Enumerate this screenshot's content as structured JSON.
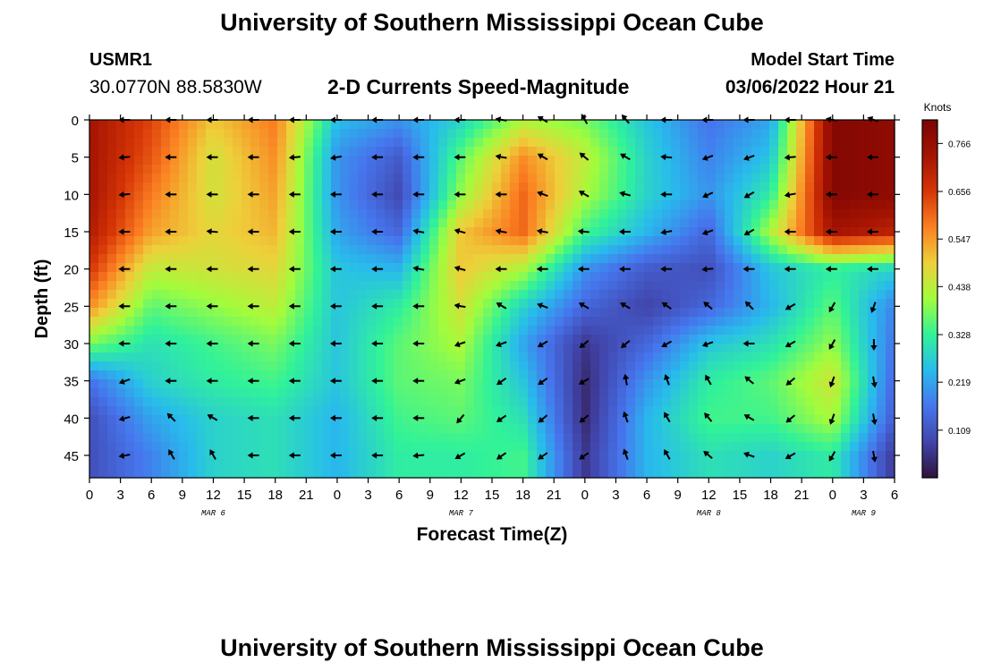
{
  "header": {
    "title": "University of Southern Mississippi Ocean Cube",
    "station": "USMR1",
    "coordinates": "30.0770N  88.5830W",
    "subtitle": "2-D Currents Speed-Magnitude",
    "model_start_label": "Model Start Time",
    "model_start_value": "03/06/2022 Hour 21"
  },
  "footer": {
    "title": "University of Southern Mississippi Ocean Cube"
  },
  "chart_data": {
    "type": "heatmap",
    "title": "2-D Currents Speed-Magnitude",
    "xlabel": "Forecast Time(Z)",
    "ylabel": "Depth (ft)",
    "x_tick_labels": [
      "0",
      "3",
      "6",
      "9",
      "12",
      "15",
      "18",
      "21",
      "0",
      "3",
      "6",
      "9",
      "12",
      "15",
      "18",
      "21",
      "0",
      "3",
      "6",
      "9",
      "12",
      "15",
      "18",
      "21",
      "0",
      "3",
      "6"
    ],
    "x_range_hours": [
      0,
      78
    ],
    "day_labels": [
      {
        "label": "MAR 6",
        "hour": 12
      },
      {
        "label": "MAR 7",
        "hour": 36
      },
      {
        "label": "MAR 8",
        "hour": 60
      },
      {
        "label": "MAR 9",
        "hour": 75
      }
    ],
    "y_ticks": [
      0,
      5,
      10,
      15,
      20,
      25,
      30,
      35,
      40,
      45
    ],
    "y_range": [
      0,
      48
    ],
    "y_inverted": true,
    "colorbar": {
      "label": "Knots",
      "ticks": [
        0.109,
        0.219,
        0.328,
        0.438,
        0.547,
        0.656,
        0.766
      ],
      "range": [
        0.0,
        0.82
      ]
    },
    "depths": [
      0,
      5,
      10,
      15,
      20,
      25,
      30,
      35,
      40,
      45
    ],
    "times": [
      0,
      6,
      12,
      18,
      24,
      30,
      36,
      42,
      48,
      54,
      60,
      66,
      72,
      78
    ],
    "speed": [
      [
        0.74,
        0.64,
        0.5,
        0.58,
        0.25,
        0.2,
        0.28,
        0.42,
        0.38,
        0.26,
        0.16,
        0.22,
        0.8,
        0.78
      ],
      [
        0.74,
        0.62,
        0.46,
        0.56,
        0.2,
        0.12,
        0.36,
        0.56,
        0.44,
        0.28,
        0.18,
        0.26,
        0.8,
        0.78
      ],
      [
        0.74,
        0.58,
        0.46,
        0.54,
        0.2,
        0.09,
        0.4,
        0.6,
        0.42,
        0.28,
        0.2,
        0.32,
        0.8,
        0.78
      ],
      [
        0.72,
        0.54,
        0.48,
        0.52,
        0.22,
        0.14,
        0.5,
        0.6,
        0.34,
        0.24,
        0.14,
        0.42,
        0.74,
        0.7
      ],
      [
        0.66,
        0.44,
        0.46,
        0.48,
        0.26,
        0.24,
        0.5,
        0.42,
        0.2,
        0.12,
        0.1,
        0.26,
        0.32,
        0.28
      ],
      [
        0.56,
        0.36,
        0.4,
        0.44,
        0.26,
        0.32,
        0.46,
        0.28,
        0.14,
        0.08,
        0.14,
        0.24,
        0.36,
        0.18
      ],
      [
        0.38,
        0.3,
        0.34,
        0.38,
        0.26,
        0.36,
        0.42,
        0.22,
        0.06,
        0.14,
        0.26,
        0.3,
        0.4,
        0.16
      ],
      [
        0.16,
        0.28,
        0.32,
        0.34,
        0.26,
        0.36,
        0.38,
        0.26,
        0.04,
        0.2,
        0.32,
        0.36,
        0.46,
        0.14
      ],
      [
        0.1,
        0.22,
        0.28,
        0.3,
        0.24,
        0.34,
        0.36,
        0.3,
        0.04,
        0.24,
        0.34,
        0.34,
        0.42,
        0.12
      ],
      [
        0.1,
        0.18,
        0.28,
        0.3,
        0.24,
        0.32,
        0.32,
        0.34,
        0.06,
        0.24,
        0.3,
        0.28,
        0.32,
        0.06
      ]
    ],
    "vector_times": [
      3.5,
      8,
      12,
      16,
      20,
      24,
      28,
      32,
      36,
      40,
      44,
      48,
      52,
      56,
      60,
      64,
      68,
      72,
      76,
      78
    ],
    "vector_depths": [
      0,
      5,
      10,
      15,
      20,
      25,
      30,
      35,
      40,
      45
    ],
    "direction_deg": [
      [
        180,
        180,
        180,
        180,
        180,
        180,
        180,
        180,
        180,
        190,
        210,
        240,
        230,
        180,
        180,
        180,
        180,
        190,
        200,
        180
      ],
      [
        175,
        180,
        180,
        180,
        175,
        170,
        180,
        180,
        180,
        190,
        210,
        220,
        210,
        185,
        160,
        160,
        175,
        180,
        180,
        150
      ],
      [
        175,
        180,
        180,
        180,
        180,
        180,
        180,
        180,
        180,
        180,
        200,
        210,
        195,
        180,
        155,
        150,
        170,
        180,
        180,
        200
      ],
      [
        180,
        180,
        185,
        180,
        180,
        180,
        180,
        190,
        195,
        190,
        190,
        185,
        180,
        170,
        160,
        150,
        180,
        180,
        180,
        200
      ],
      [
        180,
        180,
        180,
        180,
        180,
        180,
        180,
        190,
        195,
        180,
        180,
        180,
        180,
        180,
        175,
        180,
        180,
        180,
        180,
        160
      ],
      [
        180,
        180,
        180,
        180,
        180,
        180,
        180,
        180,
        190,
        210,
        200,
        210,
        210,
        215,
        220,
        225,
        150,
        120,
        110,
        200
      ],
      [
        180,
        180,
        180,
        180,
        180,
        180,
        180,
        180,
        160,
        160,
        150,
        140,
        140,
        150,
        160,
        180,
        150,
        120,
        90,
        90
      ],
      [
        160,
        180,
        180,
        180,
        180,
        180,
        180,
        180,
        160,
        145,
        145,
        150,
        260,
        250,
        240,
        220,
        140,
        110,
        80,
        80
      ],
      [
        165,
        225,
        210,
        180,
        180,
        180,
        180,
        180,
        130,
        145,
        140,
        140,
        250,
        240,
        230,
        210,
        140,
        110,
        80,
        70
      ],
      [
        170,
        240,
        240,
        180,
        180,
        180,
        180,
        175,
        150,
        145,
        145,
        145,
        250,
        240,
        220,
        200,
        150,
        120,
        80,
        70
      ]
    ]
  }
}
